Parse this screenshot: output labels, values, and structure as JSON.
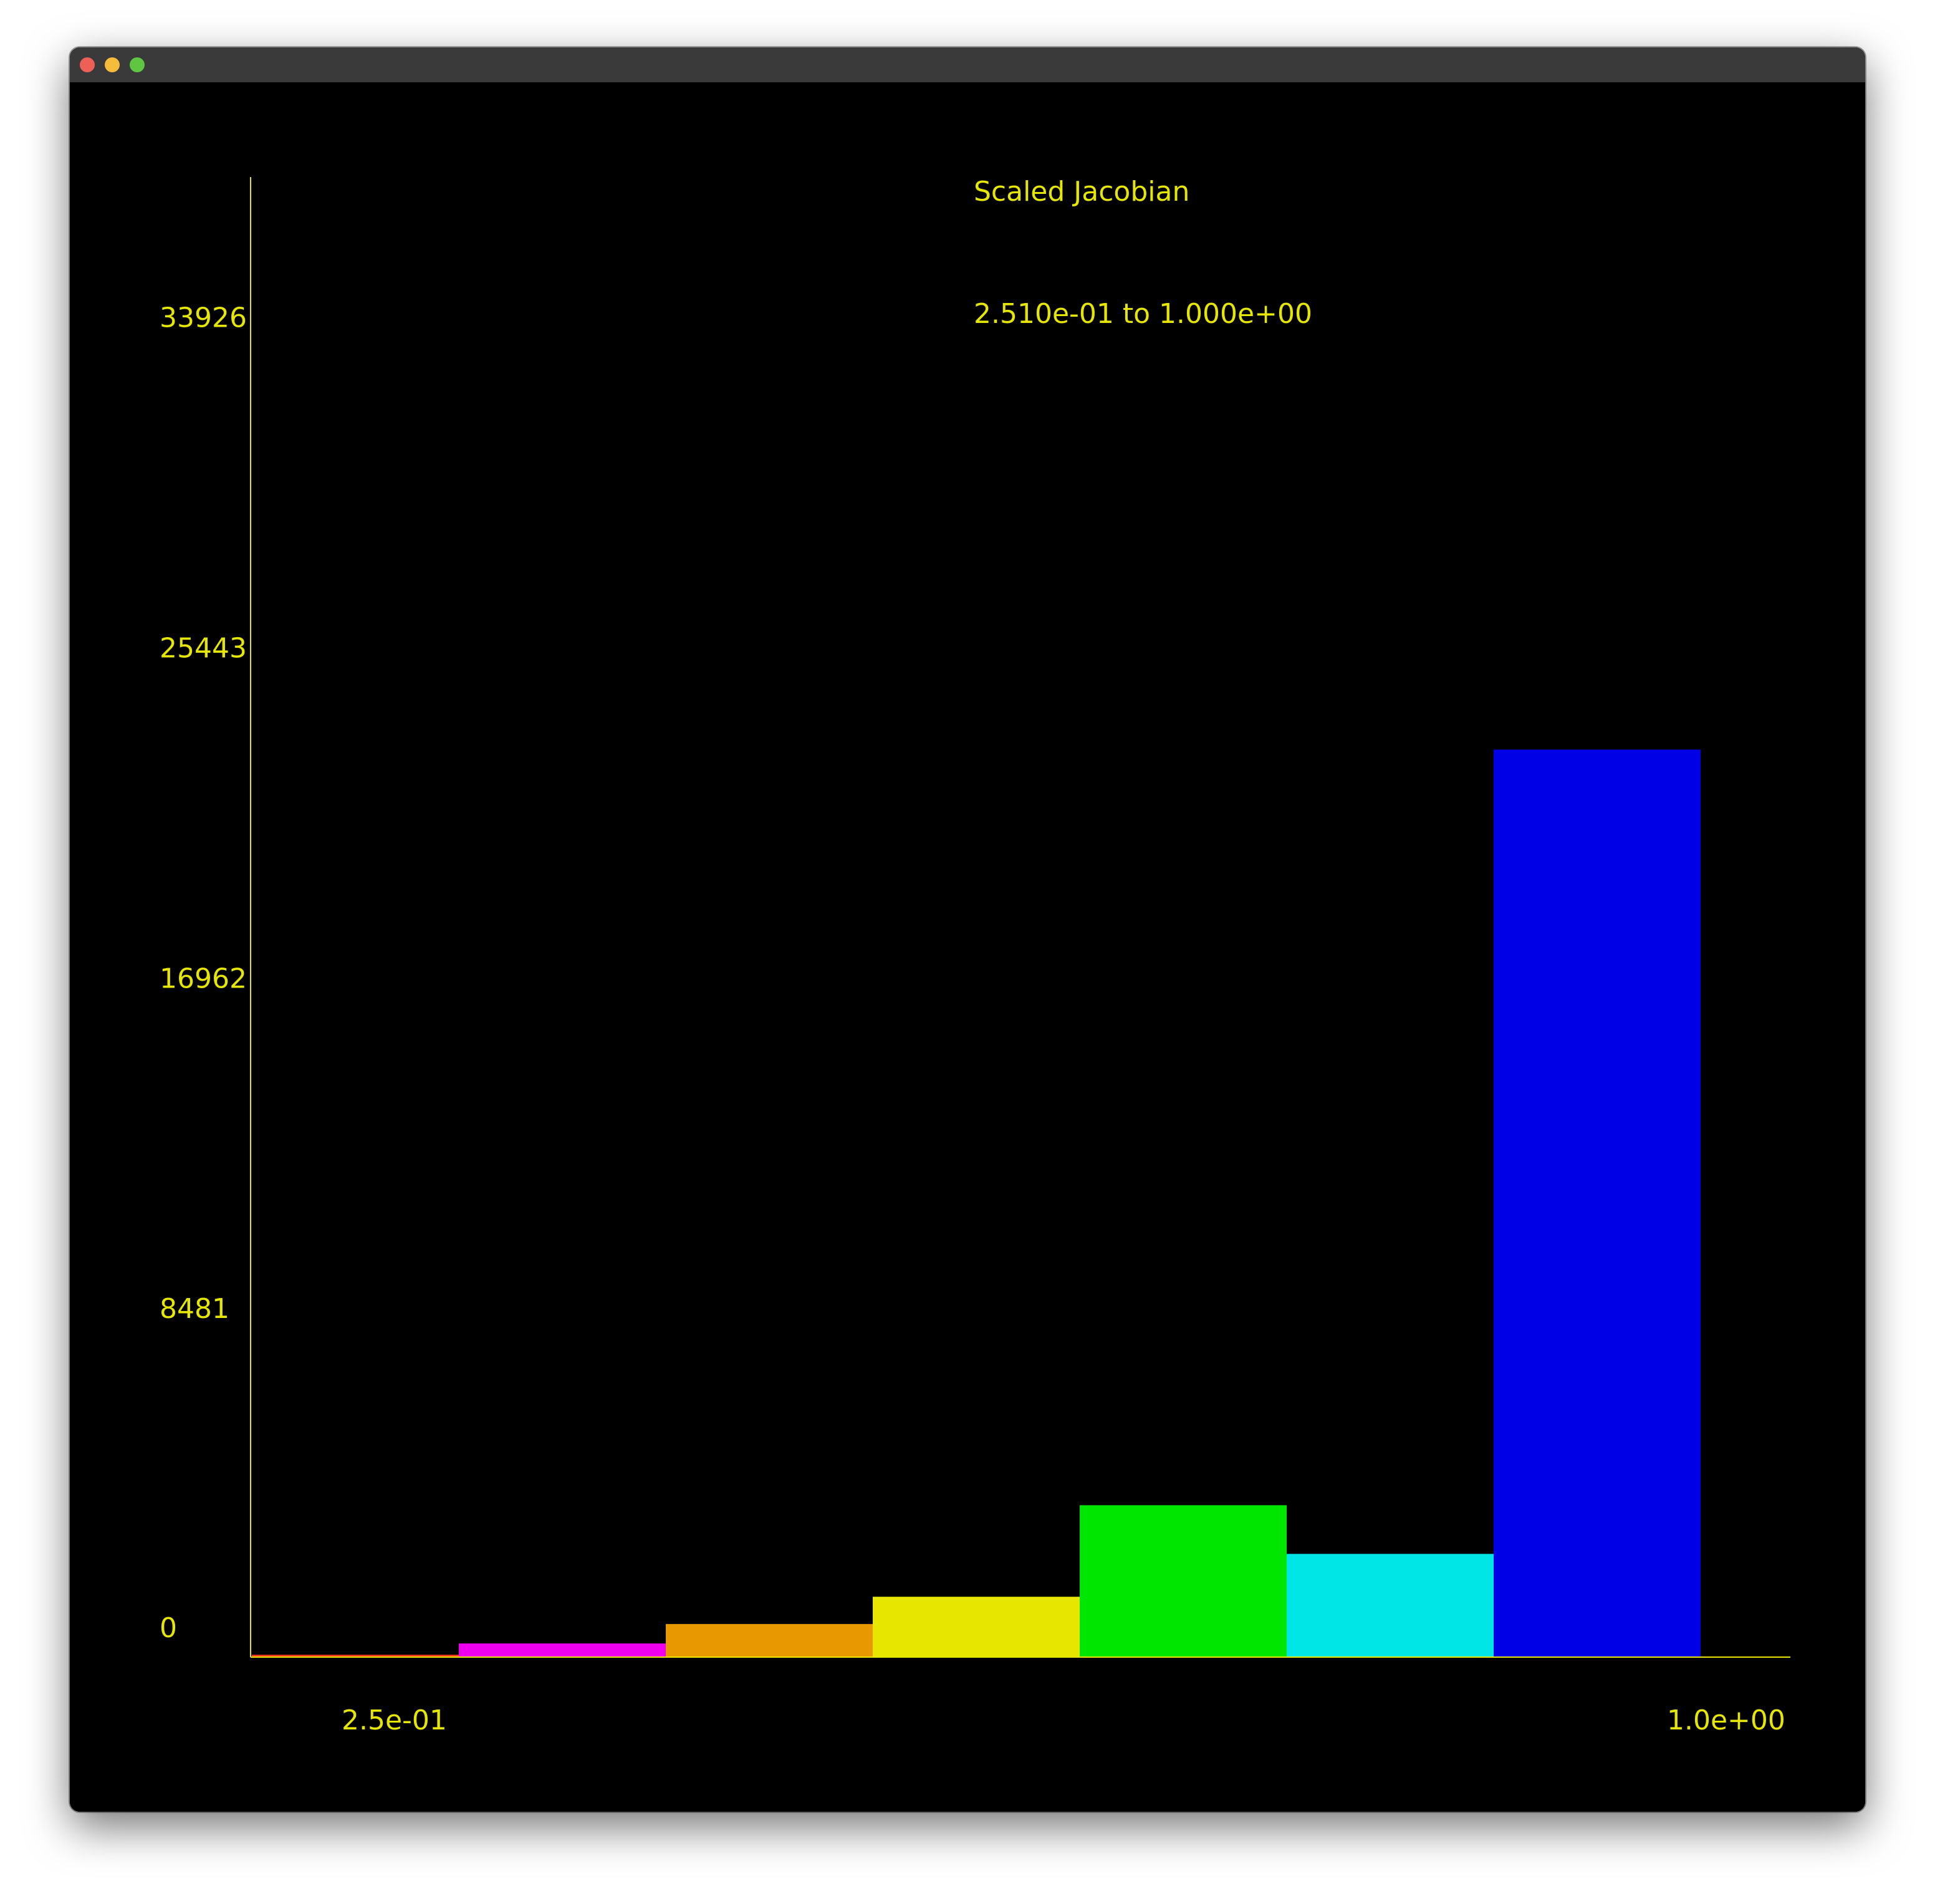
{
  "window": {
    "controls": [
      {
        "name": "close-button",
        "color": "#ee5f58"
      },
      {
        "name": "minimize-button",
        "color": "#f6bd3b"
      },
      {
        "name": "zoom-button",
        "color": "#5ec640"
      }
    ]
  },
  "chart_data": {
    "type": "bar",
    "title": "Scaled Jacobian",
    "subtitle": "2.510e-01 to 1.000e+00",
    "text_color": "#e6e600",
    "background": "#000000",
    "y_ticks": [
      0,
      8481,
      16962,
      25443,
      33926
    ],
    "ylim": [
      0,
      38000
    ],
    "x_ticks": [
      "2.5e-01",
      "1.0e+00"
    ],
    "xlim": [
      0.251,
      1.0
    ],
    "bins": 7,
    "values": [
      60,
      350,
      850,
      1550,
      3900,
      2650,
      23300
    ],
    "colors": [
      "#ff3b1f",
      "#ee00ee",
      "#e89800",
      "#e6e600",
      "#00e600",
      "#00e6e6",
      "#0000e6"
    ],
    "grid": false,
    "legend": "none"
  }
}
